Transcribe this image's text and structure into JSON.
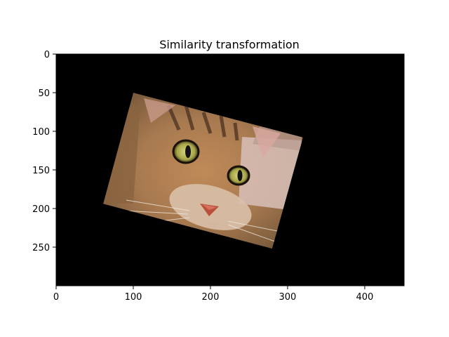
{
  "figure": {
    "title": "Similarity transformation",
    "background_color": "#000000",
    "x_axis": {
      "range": [
        0,
        451
      ],
      "ticks": [
        0,
        100,
        200,
        300,
        400
      ]
    },
    "y_axis": {
      "range": [
        0,
        300
      ],
      "inverted": true,
      "ticks": [
        0,
        50,
        100,
        150,
        200,
        250
      ]
    },
    "image_content": "cat-face-photo",
    "image_corners": [
      [
        100,
        50
      ],
      [
        320,
        108
      ],
      [
        280,
        252
      ],
      [
        61,
        194
      ]
    ]
  }
}
